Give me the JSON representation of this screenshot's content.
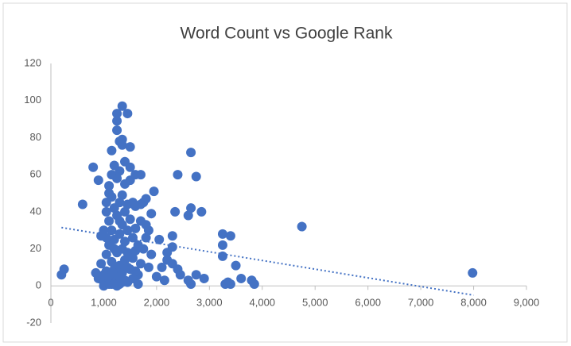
{
  "chart_data": {
    "type": "scatter",
    "title": "Word Count vs Google Rank",
    "color": "#4472c4",
    "x": [
      7980,
      4750,
      3850,
      3800,
      3600,
      3500,
      3400,
      3400,
      3300,
      3250,
      3250,
      3250,
      3350,
      2900,
      2850,
      2750,
      2750,
      2650,
      2650,
      2600,
      2650,
      2600,
      2450,
      2400,
      2400,
      2350,
      2300,
      2300,
      2300,
      2200,
      2200,
      2150,
      2100,
      2050,
      2000,
      1950,
      1900,
      1900,
      1850,
      1850,
      1800,
      1800,
      1800,
      1750,
      1750,
      1700,
      1700,
      1700,
      1700,
      1650,
      1650,
      600,
      200,
      250,
      800,
      850,
      900,
      900,
      950,
      950,
      1000,
      1000,
      1050,
      1050,
      1050,
      1050,
      1100,
      1100,
      1100,
      1100,
      1100,
      1150,
      1150,
      1150,
      1150,
      1150,
      1150,
      1200,
      1200,
      1200,
      1200,
      1250,
      1250,
      1250,
      1250,
      1250,
      1250,
      1250,
      1300,
      1300,
      1300,
      1300,
      1300,
      1300,
      1350,
      1350,
      1350,
      1350,
      1350,
      1350,
      1350,
      1400,
      1400,
      1400,
      1400,
      1400,
      1400,
      1450,
      1450,
      1450,
      1450,
      1450,
      1500,
      1500,
      1500,
      1500,
      1500,
      1550,
      1550,
      1550,
      1550,
      1600,
      1600,
      1600,
      1600,
      1600,
      1650,
      1250,
      1000,
      1100,
      1200,
      1300,
      1350,
      1450,
      1150,
      1050,
      1200,
      1300,
      1000
    ],
    "values": [
      7,
      32,
      1,
      3,
      4,
      11,
      27,
      1,
      1,
      22,
      16,
      28,
      2,
      4,
      40,
      59,
      6,
      72,
      42,
      38,
      1,
      3,
      6,
      60,
      9,
      40,
      27,
      21,
      12,
      18,
      14,
      3,
      10,
      25,
      5,
      51,
      39,
      17,
      30,
      10,
      47,
      33,
      26,
      45,
      20,
      60,
      44,
      35,
      12,
      22,
      6,
      44,
      6,
      9,
      64,
      7,
      57,
      4,
      27,
      12,
      30,
      2,
      45,
      40,
      17,
      8,
      54,
      50,
      35,
      22,
      3,
      73,
      60,
      48,
      30,
      13,
      1,
      65,
      42,
      25,
      9,
      93,
      89,
      84,
      58,
      38,
      18,
      5,
      78,
      62,
      45,
      28,
      11,
      1,
      97,
      79,
      76,
      49,
      33,
      20,
      7,
      67,
      55,
      40,
      24,
      14,
      3,
      93,
      44,
      30,
      18,
      2,
      75,
      64,
      57,
      36,
      9,
      45,
      26,
      15,
      4,
      60,
      43,
      31,
      19,
      8,
      1,
      0,
      0,
      1,
      1,
      5,
      2,
      10,
      7,
      26,
      20,
      35,
      6
    ],
    "trendline": {
      "x": [
        200,
        8000
      ],
      "y": [
        31.5,
        -5
      ],
      "color": "#4472c4"
    },
    "xlim": [
      0,
      9000
    ],
    "ylim": [
      -20,
      120
    ],
    "xticks": [
      0,
      {
        "value": 1000,
        "label": "1,000"
      },
      {
        "value": 2000,
        "label": "2,000"
      },
      {
        "value": 3000,
        "label": "3,000"
      },
      {
        "value": 4000,
        "label": "4,000"
      },
      {
        "value": 5000,
        "label": "5,000"
      },
      {
        "value": 6000,
        "label": "6,000"
      },
      {
        "value": 7000,
        "label": "7,000"
      },
      {
        "value": 8000,
        "label": "8,000"
      },
      {
        "value": 9000,
        "label": "9,000"
      }
    ],
    "yticks": [
      -20,
      0,
      20,
      40,
      60,
      80,
      100,
      120
    ],
    "grid": false
  }
}
